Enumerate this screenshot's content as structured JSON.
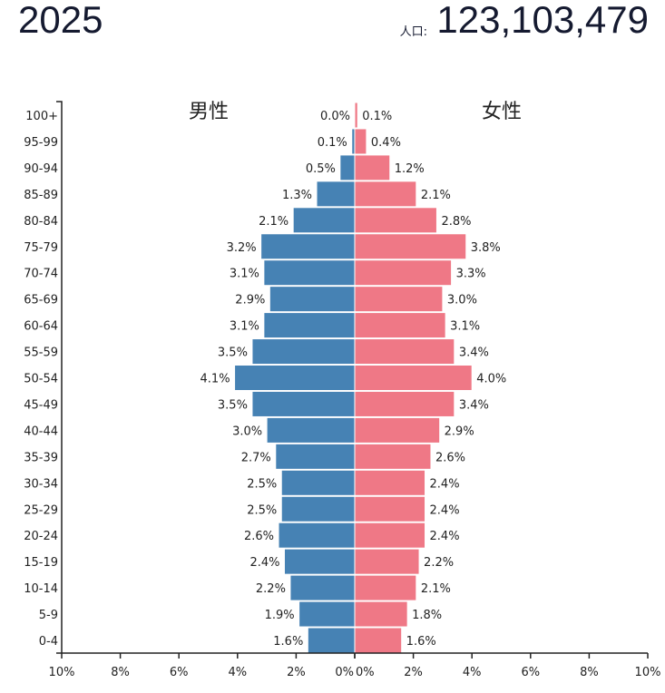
{
  "header": {
    "year": "2025",
    "population_label": "人口:",
    "population": "123,103,479"
  },
  "colors": {
    "male": "#4682b4",
    "female": "#ef7886",
    "axis": "#222222"
  },
  "chart_data": {
    "type": "bar",
    "orientation": "horizontal-pyramid",
    "left_label": "男性",
    "right_label": "女性",
    "categories": [
      "100+",
      "95-99",
      "90-94",
      "85-89",
      "80-84",
      "75-79",
      "70-74",
      "65-69",
      "60-64",
      "55-59",
      "50-54",
      "45-49",
      "40-44",
      "35-39",
      "30-34",
      "25-29",
      "20-24",
      "15-19",
      "10-14",
      "5-9",
      "0-4"
    ],
    "series": [
      {
        "name": "男性",
        "values": [
          0.0,
          0.1,
          0.5,
          1.3,
          2.1,
          3.2,
          3.1,
          2.9,
          3.1,
          3.5,
          4.1,
          3.5,
          3.0,
          2.7,
          2.5,
          2.5,
          2.6,
          2.4,
          2.2,
          1.9,
          1.6
        ]
      },
      {
        "name": "女性",
        "values": [
          0.1,
          0.4,
          1.2,
          2.1,
          2.8,
          3.8,
          3.3,
          3.0,
          3.1,
          3.4,
          4.0,
          3.4,
          2.9,
          2.6,
          2.4,
          2.4,
          2.4,
          2.2,
          2.1,
          1.8,
          1.6
        ]
      }
    ],
    "xlim": [
      -10,
      10
    ],
    "x_ticks": [
      "10%",
      "8%",
      "6%",
      "4%",
      "2%",
      "0%",
      "0%",
      "2%",
      "4%",
      "6%",
      "8%",
      "10%"
    ],
    "value_format": "%",
    "grid": false
  }
}
